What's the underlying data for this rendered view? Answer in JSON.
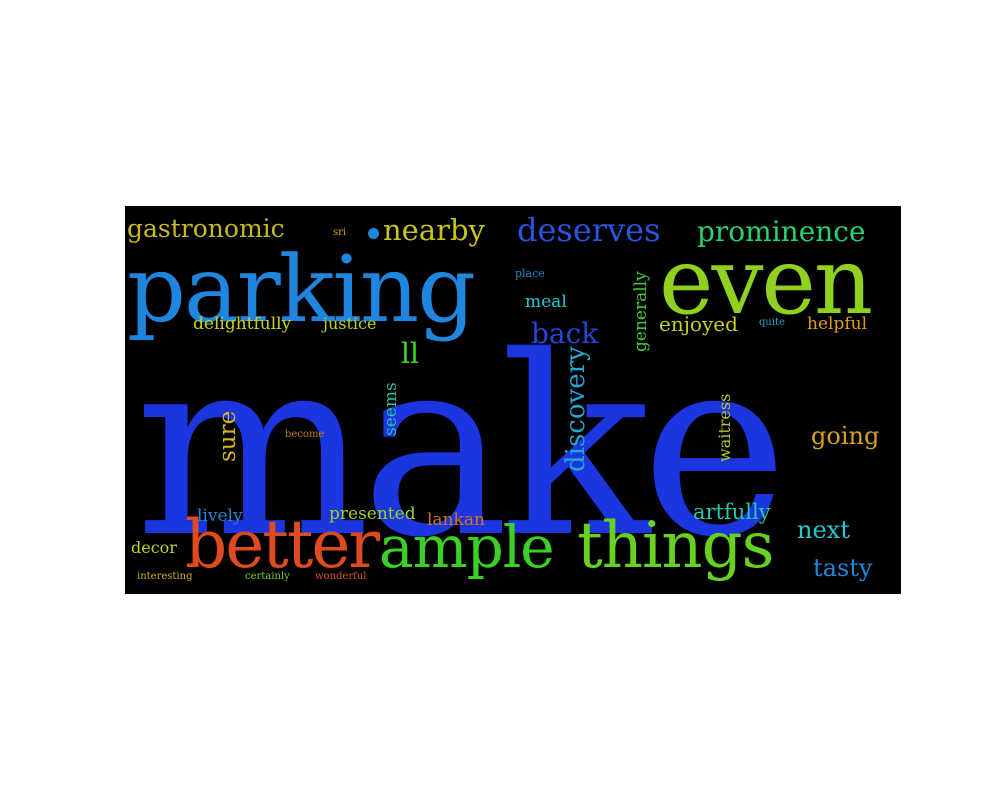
{
  "word_cloud": {
    "background": "#000000",
    "words": [
      {
        "key": "make",
        "text": "make",
        "color": "#1b36e0"
      },
      {
        "key": "parking",
        "text": "parking",
        "color": "#1e86de"
      },
      {
        "key": "even",
        "text": "even",
        "color": "#8fd11e"
      },
      {
        "key": "better",
        "text": "better",
        "color": "#df4a1f"
      },
      {
        "key": "ample",
        "text": "ample",
        "color": "#39d126"
      },
      {
        "key": "things",
        "text": "things",
        "color": "#66d11f"
      },
      {
        "key": "gastronomic",
        "text": "gastronomic",
        "color": "#c7b81d"
      },
      {
        "key": "nearby",
        "text": "nearby",
        "color": "#c8c21c"
      },
      {
        "key": "deserves",
        "text": "deserves",
        "color": "#2a54e0"
      },
      {
        "key": "prominence",
        "text": "prominence",
        "color": "#25d26f"
      },
      {
        "key": "sri",
        "text": "sri",
        "color": "#c9a21f"
      },
      {
        "key": "place",
        "text": "place",
        "color": "#1e8ad2"
      },
      {
        "key": "meal",
        "text": "meal",
        "color": "#25c9d4"
      },
      {
        "key": "back",
        "text": "back",
        "color": "#2345d8"
      },
      {
        "key": "generally",
        "text": "generally",
        "color": "#3fd137"
      },
      {
        "key": "enjoyed",
        "text": "enjoyed",
        "color": "#c8cf22"
      },
      {
        "key": "quite",
        "text": "quite",
        "color": "#1fa6c9"
      },
      {
        "key": "helpful",
        "text": "helpful",
        "color": "#e39b1e"
      },
      {
        "key": "delightfully",
        "text": "delightfully",
        "color": "#c9d323"
      },
      {
        "key": "justice",
        "text": "justice",
        "color": "#b8d223"
      },
      {
        "key": "ll",
        "text": "ll",
        "color": "#3ad729"
      },
      {
        "key": "sure",
        "text": "sure",
        "color": "#d6b51f"
      },
      {
        "key": "become",
        "text": "become",
        "color": "#c7781c"
      },
      {
        "key": "seems",
        "text": "seems",
        "color": "#23c6a0"
      },
      {
        "key": "discovery",
        "text": "discovery",
        "color": "#22a7d3"
      },
      {
        "key": "waitress",
        "text": "waitress",
        "color": "#b6c91f"
      },
      {
        "key": "going",
        "text": "going",
        "color": "#d6a21d"
      },
      {
        "key": "lively",
        "text": "lively",
        "color": "#1f87d6"
      },
      {
        "key": "presented",
        "text": "presented",
        "color": "#9fd022"
      },
      {
        "key": "lankan",
        "text": "lankan",
        "color": "#d8701e"
      },
      {
        "key": "artfully",
        "text": "artfully",
        "color": "#27c9ab"
      },
      {
        "key": "next",
        "text": "next",
        "color": "#25c8d2"
      },
      {
        "key": "tasty",
        "text": "tasty",
        "color": "#1f88d8"
      },
      {
        "key": "decor",
        "text": "decor",
        "color": "#c4cf22"
      },
      {
        "key": "interesting",
        "text": "interesting",
        "color": "#c7b01d"
      },
      {
        "key": "certainly",
        "text": "certainly",
        "color": "#6fd11f"
      },
      {
        "key": "wonderful",
        "text": "wonderful",
        "color": "#db521c"
      },
      {
        "key": "dot",
        "text": "",
        "color": "#1f87d6"
      }
    ]
  }
}
